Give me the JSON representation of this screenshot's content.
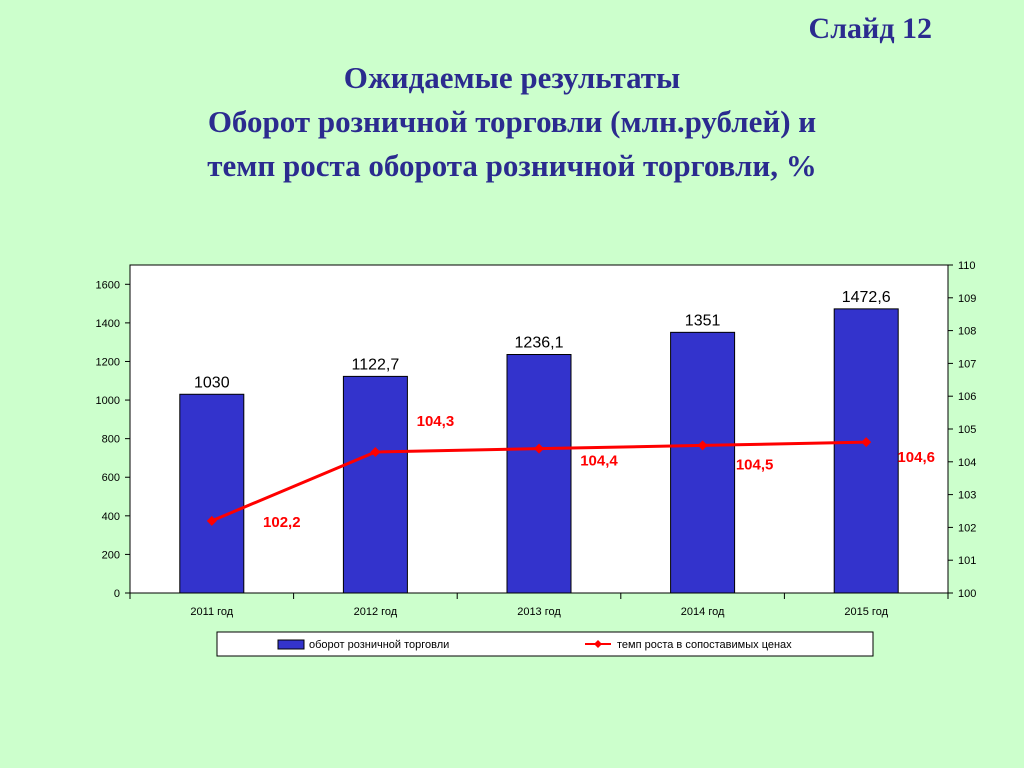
{
  "slide": {
    "label": "Слайд 12"
  },
  "title": {
    "line1": "Ожидаемые результаты",
    "line2": "Оборот розничной торговли (млн.рублей) и",
    "line3": "темп роста оборота розничной торговли, %"
  },
  "chart_data": {
    "type": "bar",
    "categories": [
      "2011 год",
      "2012 год",
      "2013 год",
      "2014 год",
      "2015 год"
    ],
    "series": [
      {
        "name": "оборот розничной торговли",
        "type": "bar",
        "axis": "left",
        "color": "#3333cc",
        "values": [
          1030,
          1122.7,
          1236.1,
          1351,
          1472.6
        ],
        "labels": [
          "1030",
          "1122,7",
          "1236,1",
          "1351",
          "1472,6"
        ]
      },
      {
        "name": "темп роста в сопоставимых ценах",
        "type": "line",
        "axis": "right",
        "color": "#ff0000",
        "values": [
          102.2,
          104.3,
          104.4,
          104.5,
          104.6
        ],
        "labels": [
          "102,2",
          "104,3",
          "104,4",
          "104,5",
          "104,6"
        ]
      }
    ],
    "y_left": {
      "min": 0,
      "max": 1700,
      "ticks": [
        0,
        200,
        400,
        600,
        800,
        1000,
        1200,
        1400,
        1600
      ]
    },
    "y_right": {
      "min": 100,
      "max": 110,
      "ticks": [
        100,
        101,
        102,
        103,
        104,
        105,
        106,
        107,
        108,
        109,
        110
      ]
    },
    "grid": false,
    "legend": "bottom",
    "background": "#ffffff"
  }
}
